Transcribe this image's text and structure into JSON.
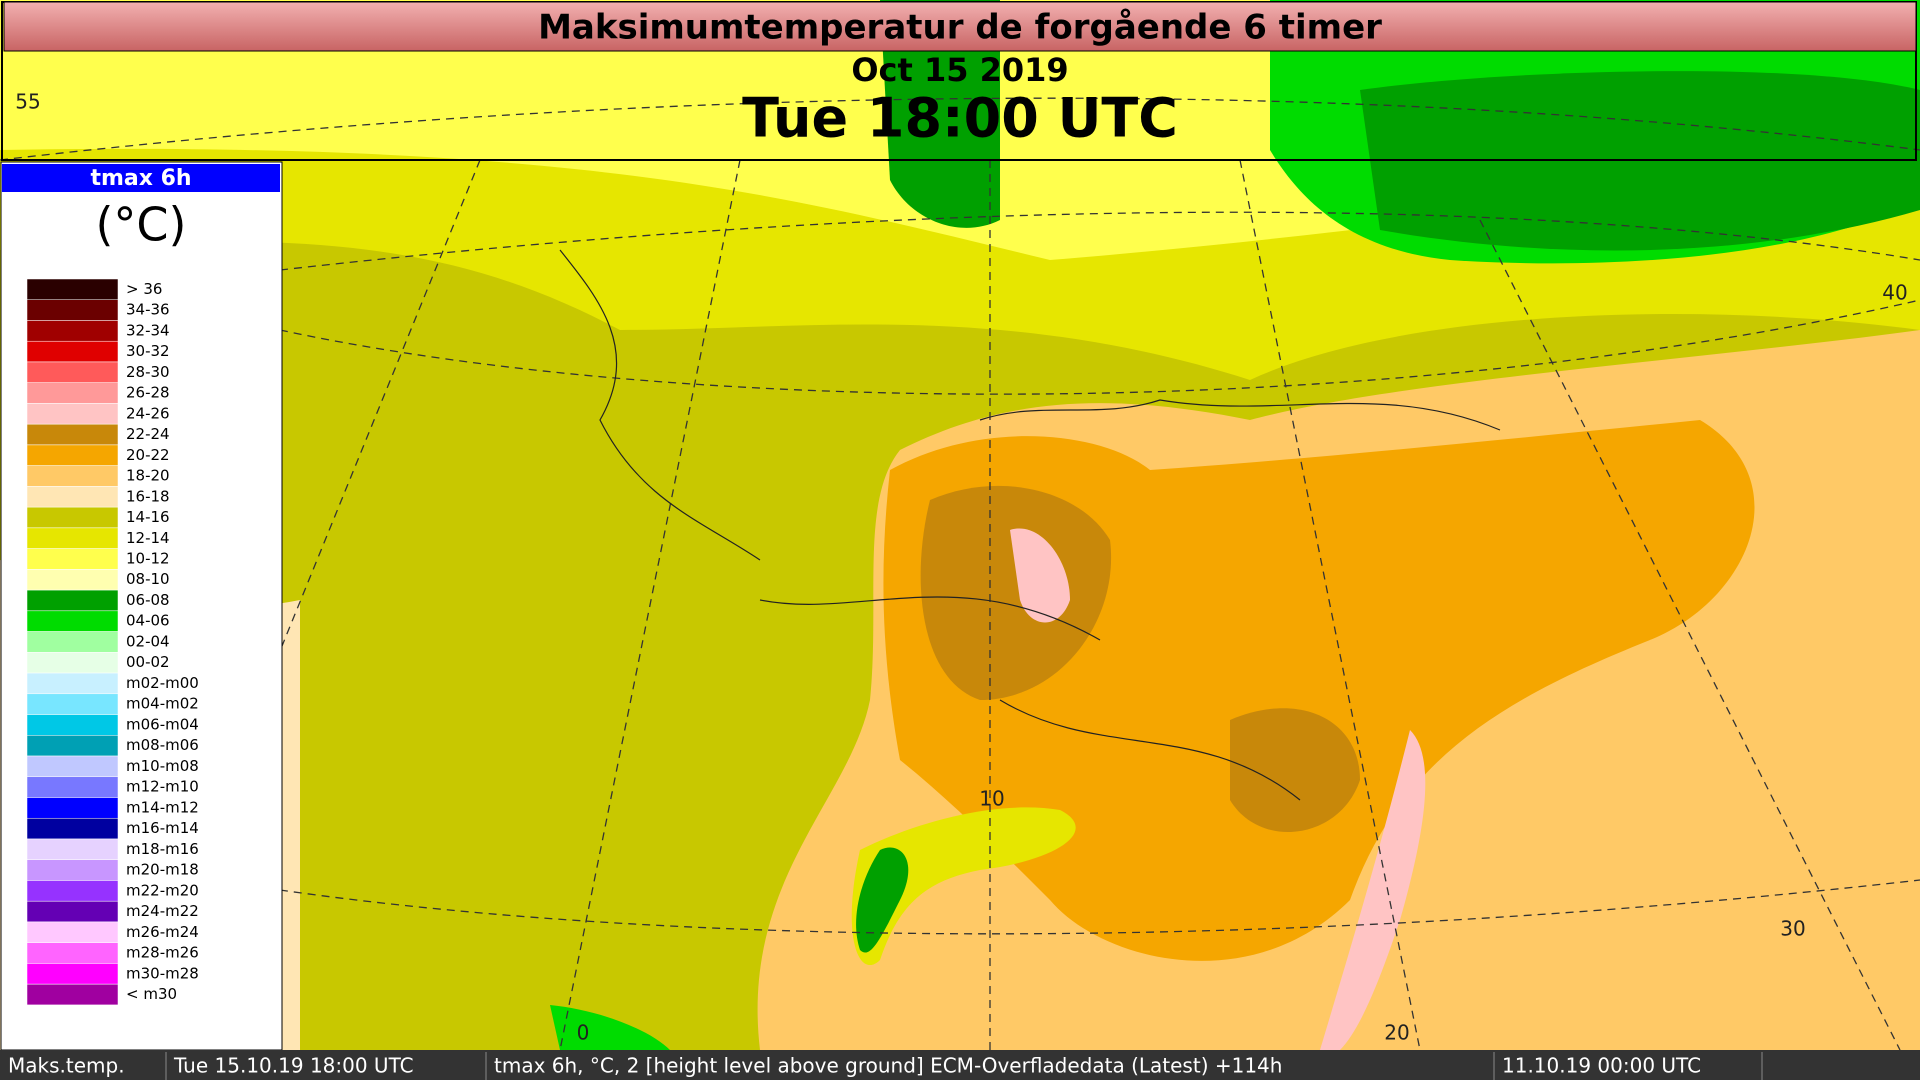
{
  "header": {
    "title": "Maksimumtemperatur de forgående 6 timer",
    "date": "Oct 15 2019",
    "time": "Tue 18:00 UTC"
  },
  "legend": {
    "title": "tmax 6h",
    "unit": "(°C)",
    "items": [
      {
        "label": "> 36",
        "color": "#2a0000"
      },
      {
        "label": "34-36",
        "color": "#6b0000"
      },
      {
        "label": "32-34",
        "color": "#a00000"
      },
      {
        "label": "30-32",
        "color": "#e00000"
      },
      {
        "label": "28-30",
        "color": "#ff5a5a"
      },
      {
        "label": "26-28",
        "color": "#ff9999"
      },
      {
        "label": "24-26",
        "color": "#ffc4c4"
      },
      {
        "label": "22-24",
        "color": "#c8880a"
      },
      {
        "label": "20-22",
        "color": "#f5a600"
      },
      {
        "label": "18-20",
        "color": "#ffc966"
      },
      {
        "label": "16-18",
        "color": "#ffe6b4"
      },
      {
        "label": "14-16",
        "color": "#c8c800"
      },
      {
        "label": "12-14",
        "color": "#e6e600"
      },
      {
        "label": "10-12",
        "color": "#ffff4d"
      },
      {
        "label": "08-10",
        "color": "#ffffb0"
      },
      {
        "label": "06-08",
        "color": "#00a000"
      },
      {
        "label": "04-06",
        "color": "#00dc00"
      },
      {
        "label": "02-04",
        "color": "#a0ffa0"
      },
      {
        "label": "00-02",
        "color": "#e6ffe6"
      },
      {
        "label": "m02-m00",
        "color": "#c8f0ff"
      },
      {
        "label": "m04-m02",
        "color": "#78e6ff"
      },
      {
        "label": "m06-m04",
        "color": "#00c8e6"
      },
      {
        "label": "m08-m06",
        "color": "#00a0b4"
      },
      {
        "label": "m10-m08",
        "color": "#c0c8ff"
      },
      {
        "label": "m12-m10",
        "color": "#7878ff"
      },
      {
        "label": "m14-m12",
        "color": "#0000ff"
      },
      {
        "label": "m16-m14",
        "color": "#0000a0"
      },
      {
        "label": "m18-m16",
        "color": "#e6d2ff"
      },
      {
        "label": "m20-m18",
        "color": "#c896ff"
      },
      {
        "label": "m22-m20",
        "color": "#9632ff"
      },
      {
        "label": "m24-m22",
        "color": "#6400b4"
      },
      {
        "label": "m26-m24",
        "color": "#ffc8ff"
      },
      {
        "label": "m28-m26",
        "color": "#ff64ff"
      },
      {
        "label": "m30-m28",
        "color": "#ff00ff"
      },
      {
        "label": "< m30",
        "color": "#a000a0"
      }
    ]
  },
  "map_labels": [
    "55",
    "40",
    "10",
    "30",
    "0",
    "20"
  ],
  "footer": [
    "Maks.temp.",
    "Tue 15.10.19 18:00 UTC",
    "tmax 6h, °C, 2 [height level above ground] ECM-Overfladedata (Latest) +114h",
    "11.10.19 00:00 UTC"
  ]
}
